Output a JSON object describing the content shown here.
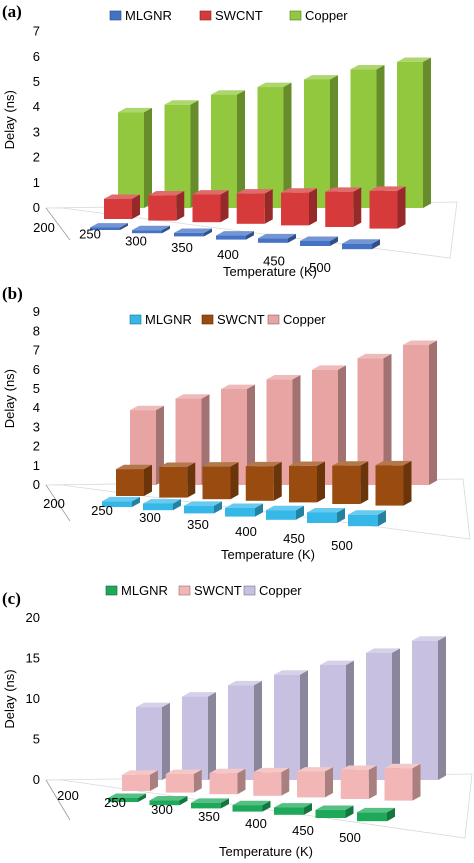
{
  "chart_data": [
    {
      "panel_label": "(a)",
      "type": "bar",
      "categories": [
        "200",
        "250",
        "300",
        "350",
        "400",
        "450",
        "500"
      ],
      "xlabel": "Temperature (K)",
      "ylabel": "Delay (ns)",
      "ylim": [
        0,
        7
      ],
      "yticks": [
        "0",
        "1",
        "2",
        "3",
        "4",
        "5",
        "6",
        "7"
      ],
      "legend_position": "top",
      "series": [
        {
          "name": "MLGNR",
          "color": "#4472c4",
          "values": [
            0.1,
            0.12,
            0.14,
            0.16,
            0.18,
            0.2,
            0.22
          ]
        },
        {
          "name": "SWCNT",
          "color": "#d63a3a",
          "values": [
            0.8,
            1.0,
            1.1,
            1.2,
            1.3,
            1.4,
            1.5
          ]
        },
        {
          "name": "Copper",
          "color": "#92c83e",
          "values": [
            3.8,
            4.1,
            4.5,
            4.8,
            5.1,
            5.5,
            5.8
          ]
        }
      ]
    },
    {
      "panel_label": "(b)",
      "type": "bar",
      "categories": [
        "200",
        "250",
        "300",
        "350",
        "400",
        "450",
        "500"
      ],
      "xlabel": "Temperature (K)",
      "ylabel": "Delay (ns)",
      "ylim": [
        0,
        9
      ],
      "yticks": [
        "0",
        "1",
        "2",
        "3",
        "4",
        "5",
        "6",
        "7",
        "8",
        "9"
      ],
      "legend_position": "top",
      "series": [
        {
          "name": "MLGNR",
          "color": "#35b8e8",
          "values": [
            0.3,
            0.35,
            0.4,
            0.45,
            0.5,
            0.55,
            0.6
          ]
        },
        {
          "name": "SWCNT",
          "color": "#994b10",
          "values": [
            1.4,
            1.6,
            1.7,
            1.8,
            1.9,
            2.0,
            2.1
          ]
        },
        {
          "name": "Copper",
          "color": "#e8a3a3",
          "values": [
            3.9,
            4.5,
            5.0,
            5.5,
            6.0,
            6.6,
            7.3
          ]
        }
      ]
    },
    {
      "panel_label": "(c)",
      "type": "bar",
      "categories": [
        "200",
        "250",
        "300",
        "350",
        "400",
        "450",
        "500"
      ],
      "xlabel": "Temperature (K)",
      "ylabel": "Delay (ns)",
      "ylim": [
        0,
        20
      ],
      "yticks": [
        "0",
        "5",
        "10",
        "15",
        "20"
      ],
      "legend_position": "top",
      "series": [
        {
          "name": "MLGNR",
          "color": "#1ea95a",
          "values": [
            0.5,
            0.6,
            0.7,
            0.8,
            0.9,
            1.0,
            1.1
          ]
        },
        {
          "name": "SWCNT",
          "color": "#f2b6b6",
          "values": [
            2.0,
            2.3,
            2.6,
            2.9,
            3.2,
            3.6,
            4.0
          ]
        },
        {
          "name": "Copper",
          "color": "#c8c0e0",
          "values": [
            9.0,
            10.3,
            11.7,
            13.0,
            14.2,
            15.7,
            17.2
          ]
        }
      ]
    }
  ]
}
